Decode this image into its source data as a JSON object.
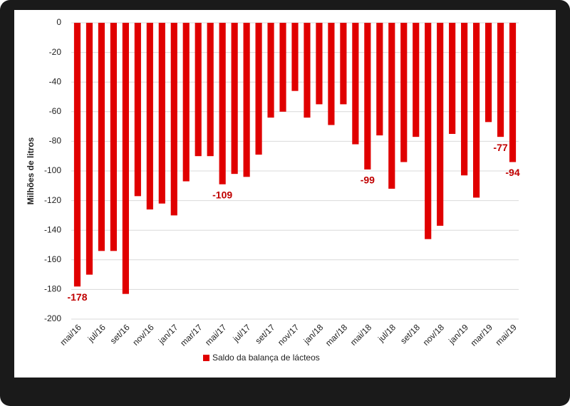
{
  "chart_data": {
    "type": "bar",
    "y_label": "Milhões de litros",
    "categories": [
      "mai/16",
      null,
      "jul/16",
      null,
      "set/16",
      null,
      "nov/16",
      null,
      "jan/17",
      null,
      "mar/17",
      null,
      "mai/17",
      null,
      "jul/17",
      null,
      "set/17",
      null,
      "nov/17",
      null,
      "jan/18",
      null,
      "mar/18",
      null,
      "mai/18",
      null,
      "jul/18",
      null,
      "set/18",
      null,
      "nov/18",
      null,
      "jan/19",
      null,
      "mar/19",
      null,
      "mai/19"
    ],
    "series": [
      {
        "name": "Saldo da balança de lácteos",
        "color": "#e00000",
        "values": [
          -178,
          -170,
          -154,
          -154,
          -183,
          -117,
          -126,
          -122,
          -130,
          -107,
          -90,
          -90,
          -109,
          -102,
          -104,
          -89,
          -64,
          -60,
          -46,
          -64,
          -55,
          -69,
          -55,
          -82,
          -99,
          -76,
          -112,
          -94,
          -77,
          -146,
          -137,
          -75,
          -103,
          -118,
          -67,
          -77,
          -94
        ],
        "value_labels": [
          "-178",
          null,
          null,
          null,
          null,
          null,
          null,
          null,
          null,
          null,
          null,
          null,
          "-109",
          null,
          null,
          null,
          null,
          null,
          null,
          null,
          null,
          null,
          null,
          null,
          "-99",
          null,
          null,
          null,
          null,
          null,
          null,
          null,
          null,
          null,
          null,
          "-77",
          "-94"
        ]
      }
    ],
    "ylim": [
      -200,
      0
    ],
    "yticks": [
      0,
      -20,
      -40,
      -60,
      -80,
      -100,
      -120,
      -140,
      -160,
      -180,
      -200
    ],
    "grid": true,
    "legend": "bottom"
  }
}
